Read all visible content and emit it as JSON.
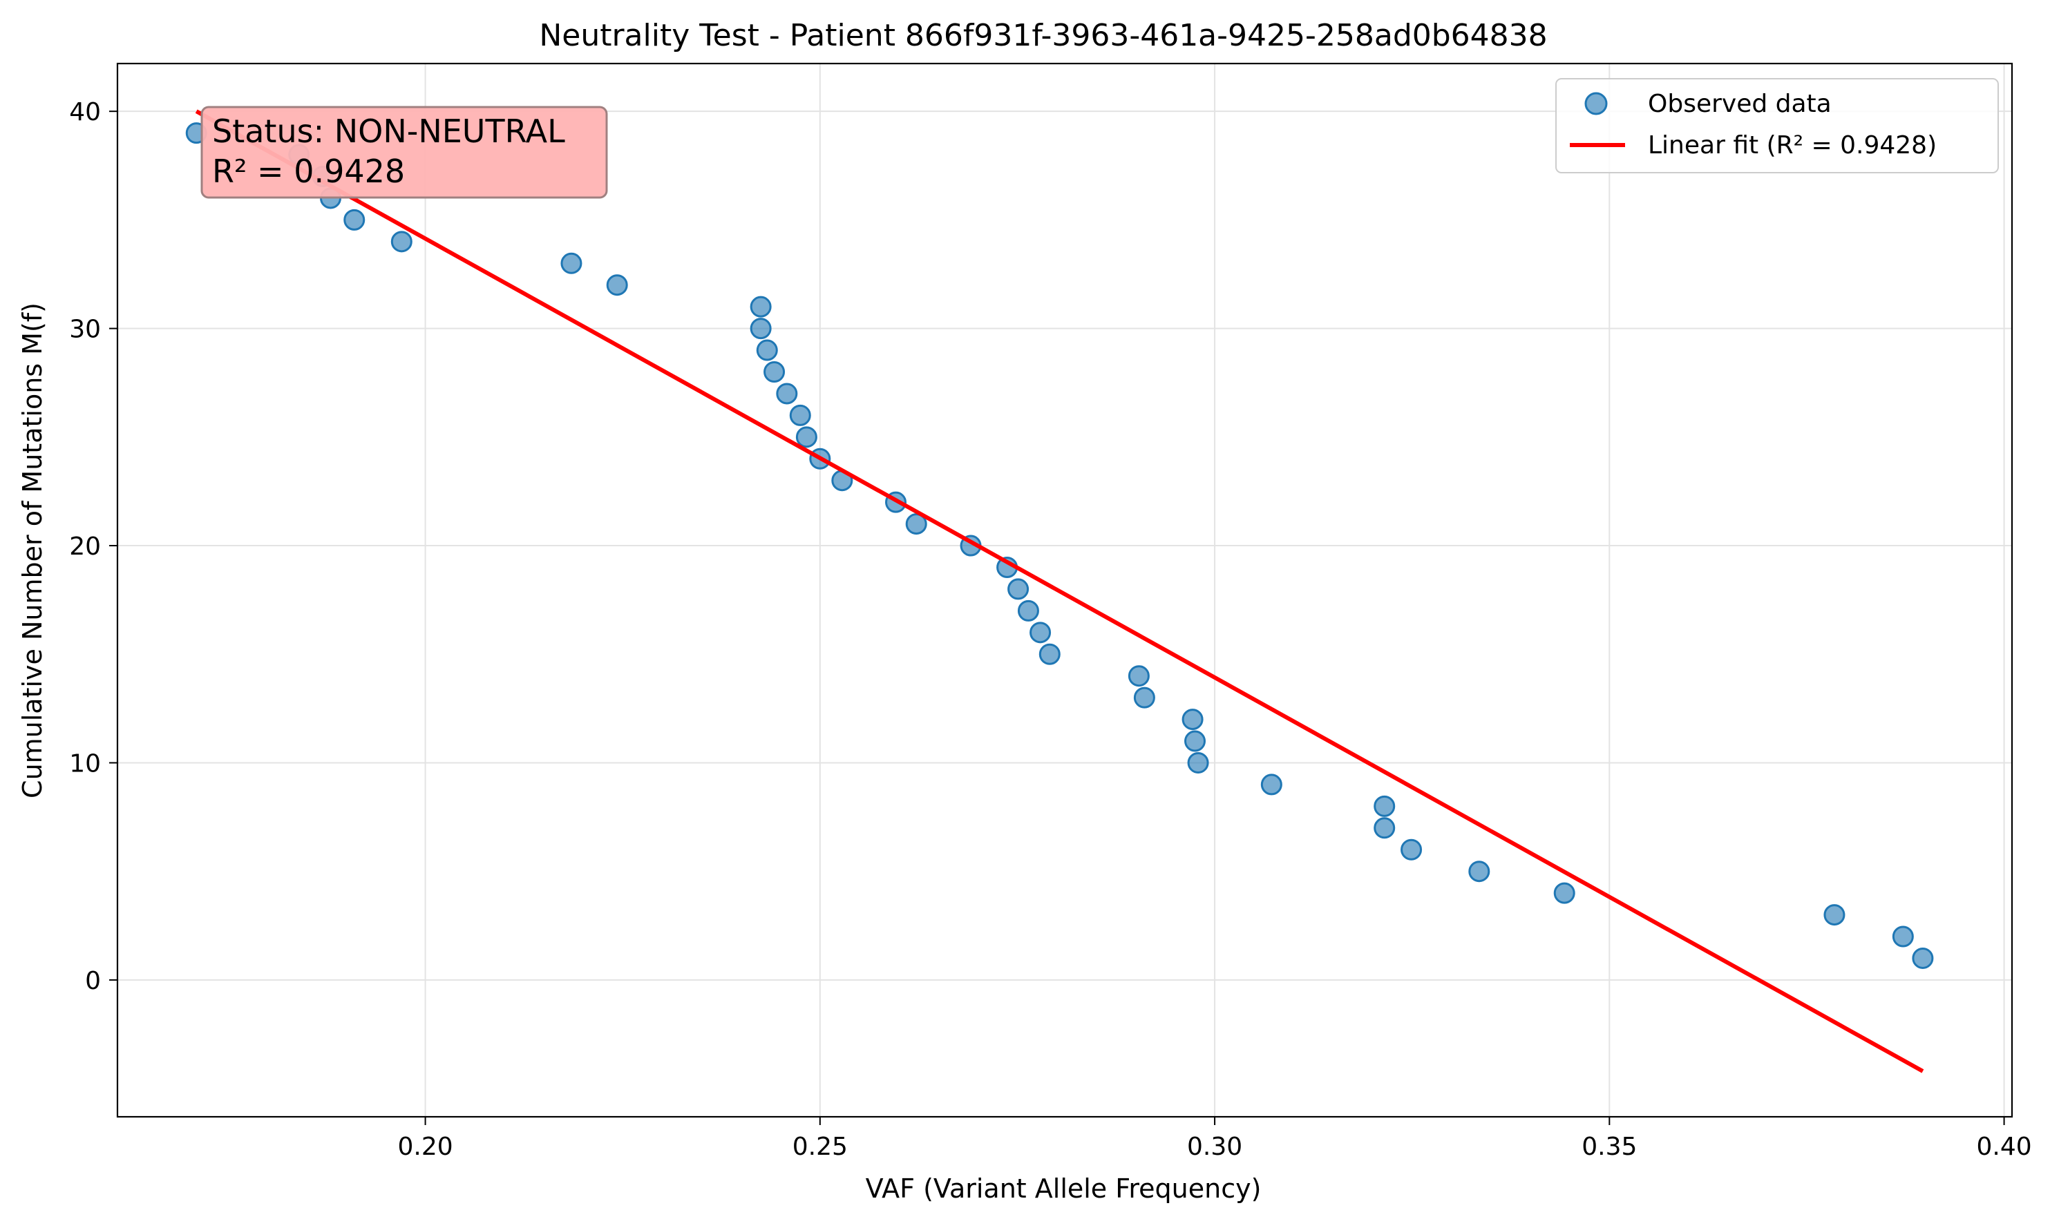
{
  "chart_data": {
    "type": "scatter",
    "title": "Neutrality Test - Patient 866f931f-3963-461a-9425-258ad0b64838",
    "xlabel": "VAF (Variant Allele Frequency)",
    "ylabel": "Cumulative Number of Mutations M(f)",
    "xlim": [
      0.161,
      0.401
    ],
    "ylim": [
      -6.3,
      42.2
    ],
    "xticks": [
      0.2,
      0.25,
      0.3,
      0.35,
      0.4
    ],
    "xtick_labels": [
      "0.20",
      "0.25",
      "0.30",
      "0.35",
      "0.40"
    ],
    "yticks": [
      0,
      10,
      20,
      30,
      40
    ],
    "ytick_labels": [
      "0",
      "10",
      "20",
      "30",
      "40"
    ],
    "grid": true,
    "legend_position": "top-right",
    "series": [
      {
        "name": "Observed data",
        "kind": "scatter",
        "color": "#1f77b4",
        "points": [
          {
            "x": 0.171,
            "y": 39
          },
          {
            "x": 0.184,
            "y": 38
          },
          {
            "x": 0.187,
            "y": 37
          },
          {
            "x": 0.188,
            "y": 36
          },
          {
            "x": 0.191,
            "y": 35
          },
          {
            "x": 0.197,
            "y": 34
          },
          {
            "x": 0.2185,
            "y": 33
          },
          {
            "x": 0.2243,
            "y": 32
          },
          {
            "x": 0.2425,
            "y": 31
          },
          {
            "x": 0.2425,
            "y": 30
          },
          {
            "x": 0.2433,
            "y": 29
          },
          {
            "x": 0.2442,
            "y": 28
          },
          {
            "x": 0.2458,
            "y": 27
          },
          {
            "x": 0.2475,
            "y": 26
          },
          {
            "x": 0.2483,
            "y": 25
          },
          {
            "x": 0.25,
            "y": 24
          },
          {
            "x": 0.2528,
            "y": 23
          },
          {
            "x": 0.2596,
            "y": 22
          },
          {
            "x": 0.2622,
            "y": 21
          },
          {
            "x": 0.2691,
            "y": 20
          },
          {
            "x": 0.2737,
            "y": 19
          },
          {
            "x": 0.2751,
            "y": 18
          },
          {
            "x": 0.2764,
            "y": 17
          },
          {
            "x": 0.2779,
            "y": 16
          },
          {
            "x": 0.2791,
            "y": 15
          },
          {
            "x": 0.2904,
            "y": 14
          },
          {
            "x": 0.2911,
            "y": 13
          },
          {
            "x": 0.2972,
            "y": 12
          },
          {
            "x": 0.2975,
            "y": 11
          },
          {
            "x": 0.2979,
            "y": 10
          },
          {
            "x": 0.3072,
            "y": 9
          },
          {
            "x": 0.3215,
            "y": 8
          },
          {
            "x": 0.3215,
            "y": 7
          },
          {
            "x": 0.3249,
            "y": 6
          },
          {
            "x": 0.3335,
            "y": 5
          },
          {
            "x": 0.3443,
            "y": 4
          },
          {
            "x": 0.3785,
            "y": 3
          },
          {
            "x": 0.3872,
            "y": 2
          },
          {
            "x": 0.3897,
            "y": 1
          }
        ]
      },
      {
        "name": "Linear fit (R² = 0.9428)",
        "kind": "line",
        "color": "#ff0000",
        "points": [
          {
            "x": 0.171,
            "y": 40
          },
          {
            "x": 0.3897,
            "y": -4.2
          }
        ]
      }
    ],
    "annotation": {
      "lines": [
        "Status: NON-NEUTRAL",
        "R² = 0.9428"
      ],
      "background": "#ffb3b3",
      "border": "#a08080"
    }
  }
}
